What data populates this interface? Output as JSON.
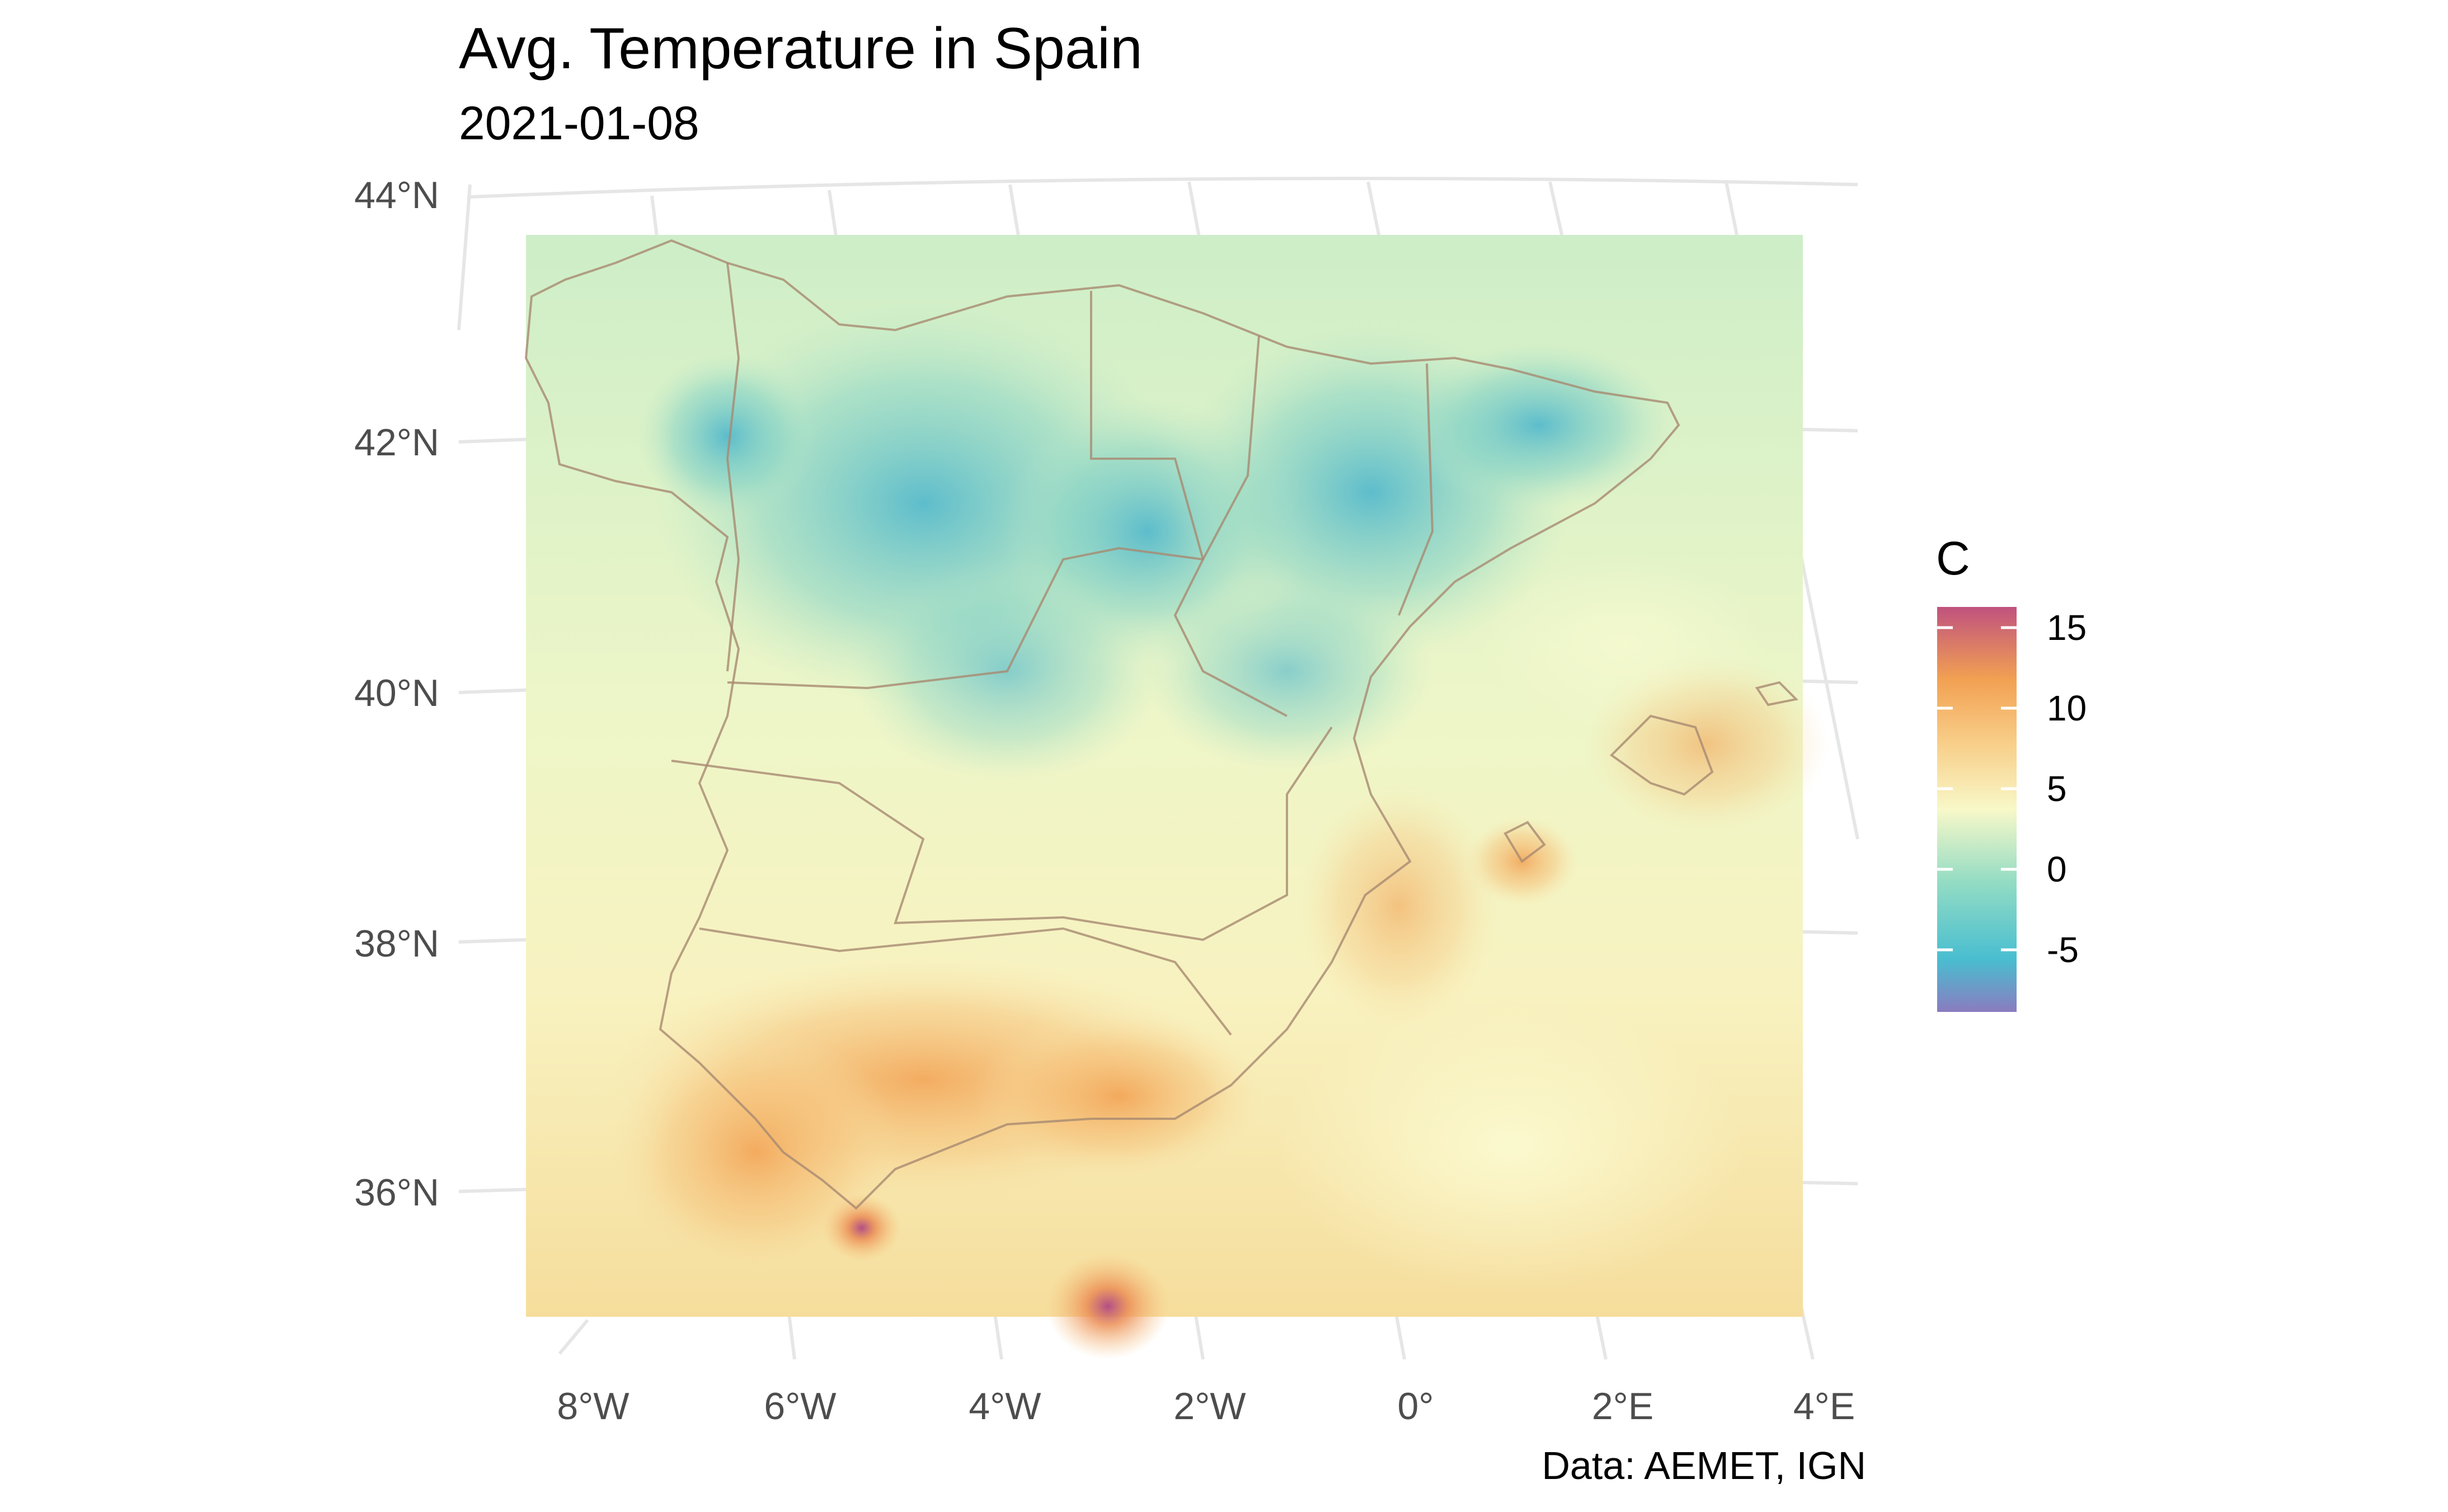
{
  "title": "Avg. Temperature in Spain",
  "subtitle": "2021-01-08",
  "caption": "Data: AEMET, IGN",
  "axes": {
    "y_ticks": [
      "44°N",
      "42°N",
      "40°N",
      "38°N",
      "36°N"
    ],
    "x_ticks": [
      "8°W",
      "6°W",
      "4°W",
      "2°W",
      "0°",
      "2°E",
      "4°E"
    ]
  },
  "legend": {
    "title": "C",
    "labels": [
      "15",
      "10",
      "5",
      "0",
      "-5"
    ],
    "range": [
      -9,
      16
    ],
    "colors": [
      "#8a7cc0",
      "#49bed0",
      "#93dcc4",
      "#f8f8c8",
      "#f8cf8a",
      "#f2a152",
      "#c0527e"
    ]
  },
  "colors": {
    "cold": "#49bed0",
    "cool": "#9ad9c4",
    "mild": "#f4f6c8",
    "warm": "#f6c37c",
    "hot": "#c0527e",
    "border": "#a88a70"
  }
}
